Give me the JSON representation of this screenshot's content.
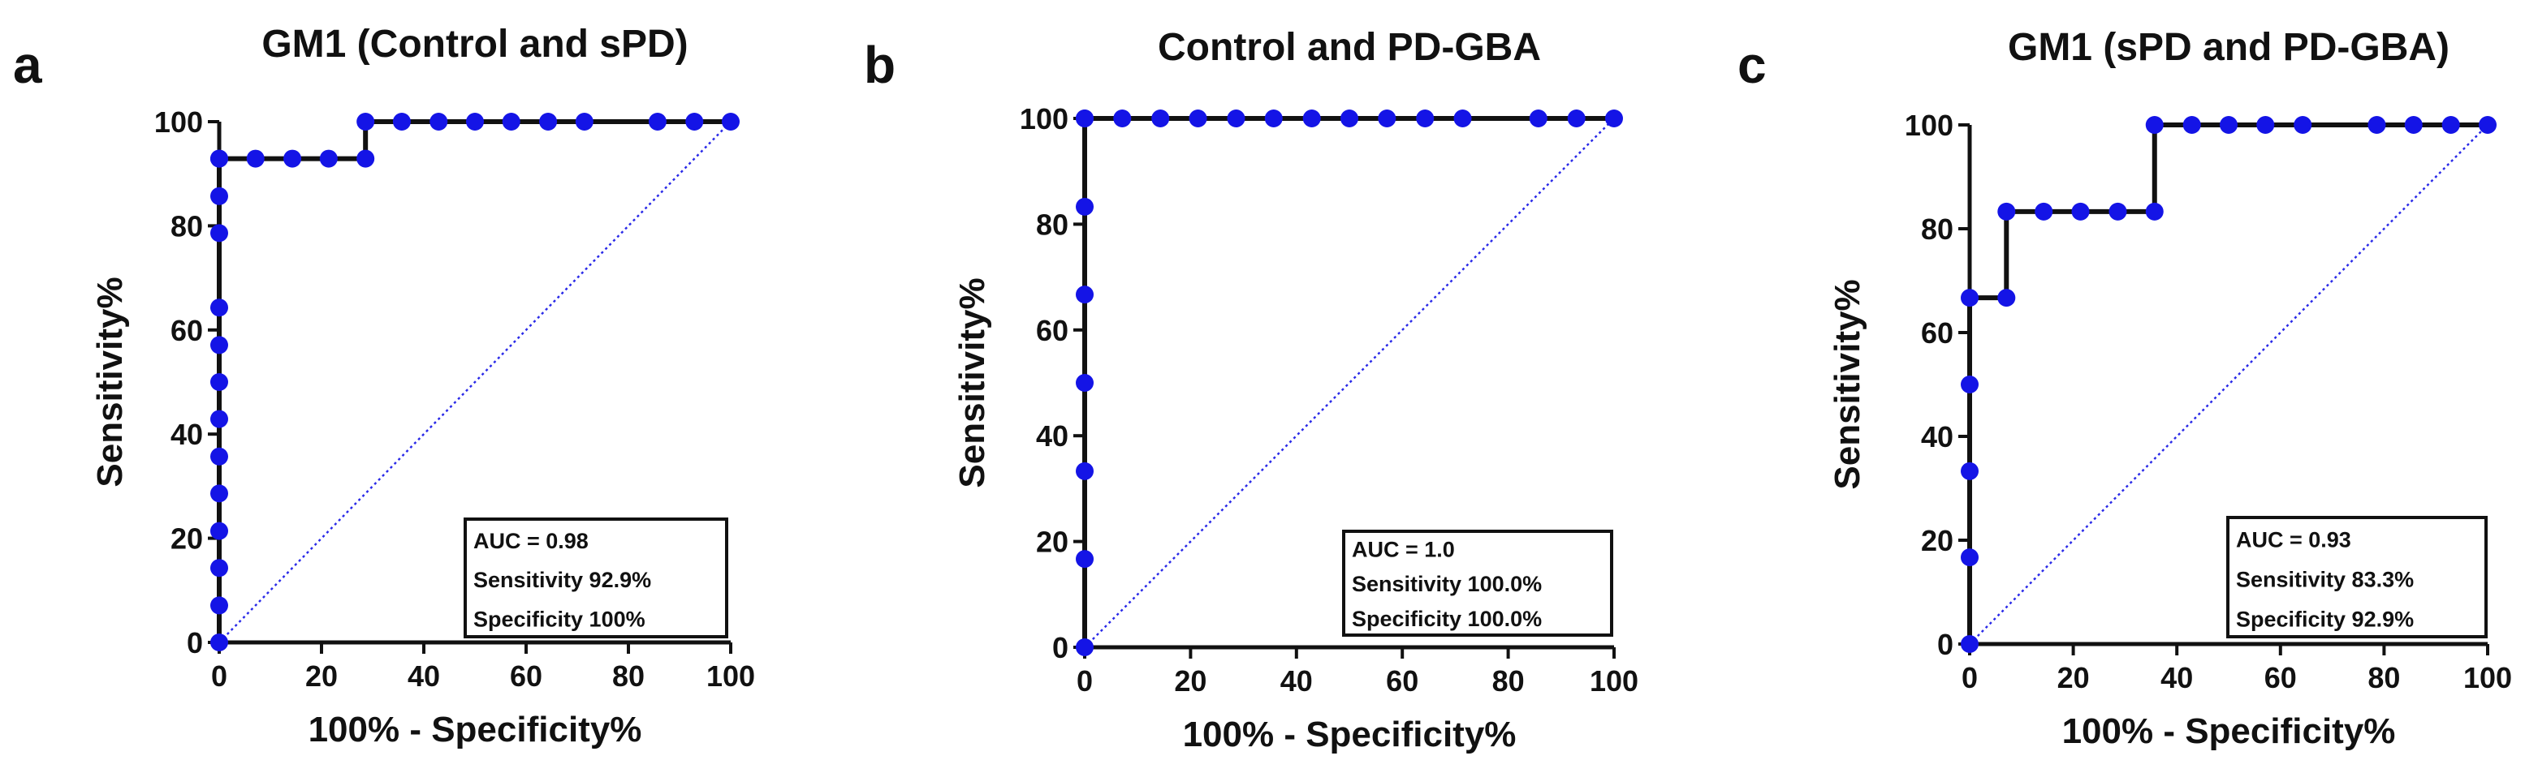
{
  "chart_data": [
    {
      "type": "line",
      "panel_label": "a",
      "title": "GM1 (Control and sPD)",
      "xlabel": "100% - Specificity%",
      "ylabel": "Sensitivity%",
      "xlim": [
        0,
        100
      ],
      "ylim": [
        0,
        100
      ],
      "xticks": [
        0,
        20,
        40,
        60,
        80,
        100
      ],
      "yticks": [
        0,
        20,
        40,
        60,
        80,
        100
      ],
      "legend_position": "bottom-right",
      "legend": [
        "AUC = 0.98",
        "Sensitivity 92.9%",
        "Specificity 100%"
      ],
      "colors": {
        "line": "#111111",
        "marker": "#1414e6",
        "reference": "#2a2ae8"
      },
      "series": [
        {
          "name": "ROC curve",
          "x": [
            0,
            0,
            0,
            0,
            0,
            0,
            0,
            0,
            0,
            0,
            0,
            0,
            0,
            0,
            7.1,
            14.3,
            21.4,
            28.6,
            28.6,
            35.7,
            42.9,
            50,
            57.1,
            64.3,
            71.4,
            85.7,
            92.9,
            100
          ],
          "y": [
            0,
            7.1,
            14.3,
            21.4,
            28.6,
            35.7,
            42.9,
            50,
            57.1,
            64.3,
            78.6,
            85.7,
            92.9,
            92.9,
            92.9,
            92.9,
            92.9,
            92.9,
            100,
            100,
            100,
            100,
            100,
            100,
            100,
            100,
            100,
            100
          ]
        },
        {
          "name": "Reference line",
          "x": [
            0,
            100
          ],
          "y": [
            0,
            100
          ]
        }
      ]
    },
    {
      "type": "line",
      "panel_label": "b",
      "title": "Control and PD-GBA",
      "xlabel": "100% - Specificity%",
      "ylabel": "Sensitivity%",
      "xlim": [
        0,
        100
      ],
      "ylim": [
        0,
        100
      ],
      "xticks": [
        0,
        20,
        40,
        60,
        80,
        100
      ],
      "yticks": [
        0,
        20,
        40,
        60,
        80,
        100
      ],
      "legend_position": "bottom-right",
      "legend": [
        "AUC = 1.0",
        "Sensitivity 100.0%",
        "Specificity 100.0%"
      ],
      "colors": {
        "line": "#111111",
        "marker": "#1414e6",
        "reference": "#2a2ae8"
      },
      "series": [
        {
          "name": "ROC curve",
          "x": [
            0,
            0,
            0,
            0,
            0,
            0,
            0,
            0,
            7.1,
            14.3,
            21.4,
            28.6,
            35.7,
            42.9,
            50,
            57.1,
            64.3,
            71.4,
            85.7,
            92.9,
            100
          ],
          "y": [
            0,
            16.7,
            33.3,
            50,
            66.7,
            83.3,
            100,
            100,
            100,
            100,
            100,
            100,
            100,
            100,
            100,
            100,
            100,
            100,
            100,
            100,
            100
          ]
        },
        {
          "name": "Reference line",
          "x": [
            0,
            100
          ],
          "y": [
            0,
            100
          ]
        }
      ]
    },
    {
      "type": "line",
      "panel_label": "c",
      "title": "GM1 (sPD and PD-GBA)",
      "xlabel": "100% - Specificity%",
      "ylabel": "Sensitivity%",
      "xlim": [
        0,
        100
      ],
      "ylim": [
        0,
        100
      ],
      "xticks": [
        0,
        20,
        40,
        60,
        80,
        100
      ],
      "yticks": [
        0,
        20,
        40,
        60,
        80,
        100
      ],
      "legend_position": "bottom-right",
      "legend": [
        "AUC = 0.93",
        "Sensitivity 83.3%",
        "Specificity 92.9%"
      ],
      "colors": {
        "line": "#111111",
        "marker": "#1414e6",
        "reference": "#2a2ae8"
      },
      "series": [
        {
          "name": "ROC curve",
          "x": [
            0,
            0,
            0,
            0,
            0,
            7.1,
            7.1,
            14.3,
            21.4,
            28.6,
            35.7,
            35.7,
            42.9,
            50,
            57.1,
            64.3,
            78.6,
            85.7,
            92.9,
            100
          ],
          "y": [
            0,
            16.7,
            33.3,
            50,
            66.7,
            66.7,
            83.3,
            83.3,
            83.3,
            83.3,
            83.3,
            100,
            100,
            100,
            100,
            100,
            100,
            100,
            100,
            100
          ]
        },
        {
          "name": "Reference line",
          "x": [
            0,
            100
          ],
          "y": [
            0,
            100
          ]
        }
      ]
    }
  ]
}
